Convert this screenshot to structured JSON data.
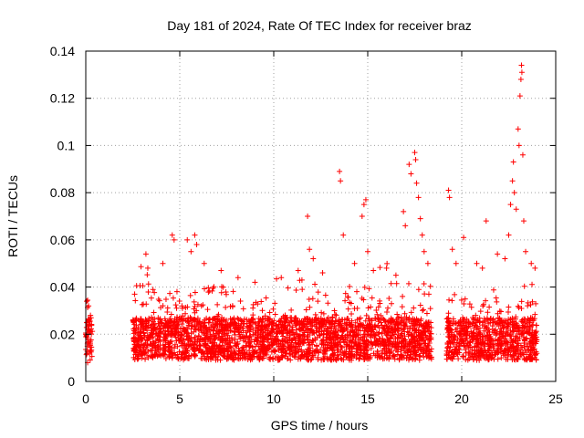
{
  "chart_data": {
    "type": "scatter",
    "title": "Day 181 of 2024, Rate Of TEC Index for receiver braz",
    "xlabel": "GPS time / hours",
    "ylabel": "ROTI / TECUs",
    "xlim": [
      0,
      25
    ],
    "ylim": [
      0,
      0.14
    ],
    "xticks": [
      0,
      5,
      10,
      15,
      20,
      25
    ],
    "xtick_labels": [
      "0",
      "5",
      "10",
      "15",
      "20",
      "25"
    ],
    "yticks": [
      0,
      0.02,
      0.04,
      0.06,
      0.08,
      0.1,
      0.12,
      0.14
    ],
    "ytick_labels": [
      "0",
      "0.02",
      "0.04",
      "0.06",
      "0.08",
      "0.1",
      "0.12",
      "0.14"
    ],
    "grid": true,
    "marker": "+",
    "series_color": "#ff0000",
    "coverage": [
      [
        0,
        0.35
      ],
      [
        2.5,
        18.4
      ],
      [
        19.2,
        24.0
      ]
    ],
    "points": [
      [
        0.05,
        0.034
      ],
      [
        0.1,
        0.008
      ],
      [
        0.15,
        0.032
      ],
      [
        0.2,
        0.012
      ],
      [
        0.25,
        0.028
      ],
      [
        2.6,
        0.037
      ],
      [
        3.2,
        0.054
      ],
      [
        3.3,
        0.048
      ],
      [
        4.1,
        0.05
      ],
      [
        4.6,
        0.062
      ],
      [
        4.7,
        0.06
      ],
      [
        5.4,
        0.06
      ],
      [
        5.6,
        0.055
      ],
      [
        5.8,
        0.062
      ],
      [
        5.9,
        0.058
      ],
      [
        6.3,
        0.05
      ],
      [
        7.2,
        0.047
      ],
      [
        8.1,
        0.044
      ],
      [
        9.0,
        0.042
      ],
      [
        10.4,
        0.044
      ],
      [
        11.3,
        0.047
      ],
      [
        11.5,
        0.043
      ],
      [
        11.8,
        0.07
      ],
      [
        11.9,
        0.056
      ],
      [
        12.1,
        0.052
      ],
      [
        12.6,
        0.046
      ],
      [
        13.5,
        0.089
      ],
      [
        13.55,
        0.085
      ],
      [
        13.7,
        0.062
      ],
      [
        14.3,
        0.05
      ],
      [
        14.7,
        0.07
      ],
      [
        14.8,
        0.075
      ],
      [
        14.9,
        0.077
      ],
      [
        15.0,
        0.055
      ],
      [
        15.3,
        0.047
      ],
      [
        16.0,
        0.048
      ],
      [
        16.5,
        0.045
      ],
      [
        16.9,
        0.072
      ],
      [
        17.0,
        0.066
      ],
      [
        17.2,
        0.092
      ],
      [
        17.3,
        0.088
      ],
      [
        17.5,
        0.097
      ],
      [
        17.55,
        0.094
      ],
      [
        17.6,
        0.084
      ],
      [
        17.7,
        0.078
      ],
      [
        17.8,
        0.069
      ],
      [
        17.9,
        0.062
      ],
      [
        18.0,
        0.055
      ],
      [
        18.2,
        0.05
      ],
      [
        19.3,
        0.081
      ],
      [
        19.35,
        0.078
      ],
      [
        19.5,
        0.056
      ],
      [
        19.7,
        0.05
      ],
      [
        20.1,
        0.061
      ],
      [
        20.8,
        0.05
      ],
      [
        21.1,
        0.048
      ],
      [
        21.3,
        0.068
      ],
      [
        21.9,
        0.054
      ],
      [
        22.3,
        0.052
      ],
      [
        22.5,
        0.062
      ],
      [
        22.6,
        0.075
      ],
      [
        22.7,
        0.085
      ],
      [
        22.75,
        0.093
      ],
      [
        22.8,
        0.08
      ],
      [
        22.9,
        0.073
      ],
      [
        23.0,
        0.107
      ],
      [
        23.05,
        0.1
      ],
      [
        23.1,
        0.121
      ],
      [
        23.15,
        0.128
      ],
      [
        23.18,
        0.134
      ],
      [
        23.2,
        0.131
      ],
      [
        23.25,
        0.096
      ],
      [
        23.3,
        0.068
      ],
      [
        23.4,
        0.055
      ],
      [
        23.7,
        0.05
      ],
      [
        23.9,
        0.048
      ]
    ]
  }
}
